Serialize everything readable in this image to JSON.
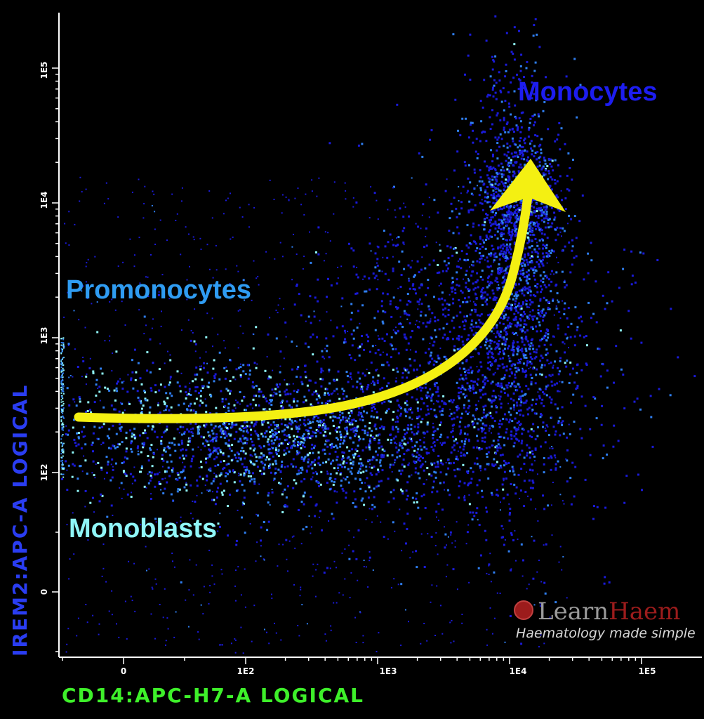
{
  "chart_data": {
    "type": "scatter",
    "title": "",
    "xlabel": "CD14:APC-H7-A LOGICAL",
    "ylabel": "IREM2:APC-A LOGICAL",
    "x_scale": "logicle",
    "y_scale": "logicle",
    "x_ticks": [
      "0",
      "1E2",
      "1E3",
      "1E4",
      "1E5"
    ],
    "y_ticks": [
      "0",
      "1E2",
      "1E3",
      "1E4",
      "1E5"
    ],
    "grid": false,
    "populations": [
      {
        "name": "Monoblasts",
        "x_approx": 30,
        "y_approx": 120,
        "color": "#8ff6f8"
      },
      {
        "name": "Promonocytes",
        "x_approx": 200,
        "y_approx": 250,
        "color": "#2f9cf2"
      },
      {
        "name": "Monocytes",
        "x_approx": 12000,
        "y_approx": 10000,
        "color": "#1d1df0"
      }
    ],
    "trend_arrow": {
      "color": "#f4f012",
      "from": "Monoblasts",
      "to": "Monocytes"
    },
    "annotations": [
      {
        "text": "Monocytes",
        "color": "#1d1df0"
      },
      {
        "text": "Promonocytes",
        "color": "#2f9cf2"
      },
      {
        "text": "Monoblasts",
        "color": "#8ff6f8"
      }
    ],
    "colors": {
      "background": "#000000",
      "xlabel": "#3ef02a",
      "ylabel": "#2a3df2",
      "point_low": "#1a1ad8",
      "point_mid": "#2f7ef0",
      "point_high": "#8ff6f8"
    }
  },
  "logo": {
    "icon": "red-circle-icon",
    "text_part1": "Learn",
    "text_part2": "Haem",
    "tagline": "Haematology made simple",
    "color1": "#9a9a9a",
    "color2": "#9c1c1c"
  }
}
